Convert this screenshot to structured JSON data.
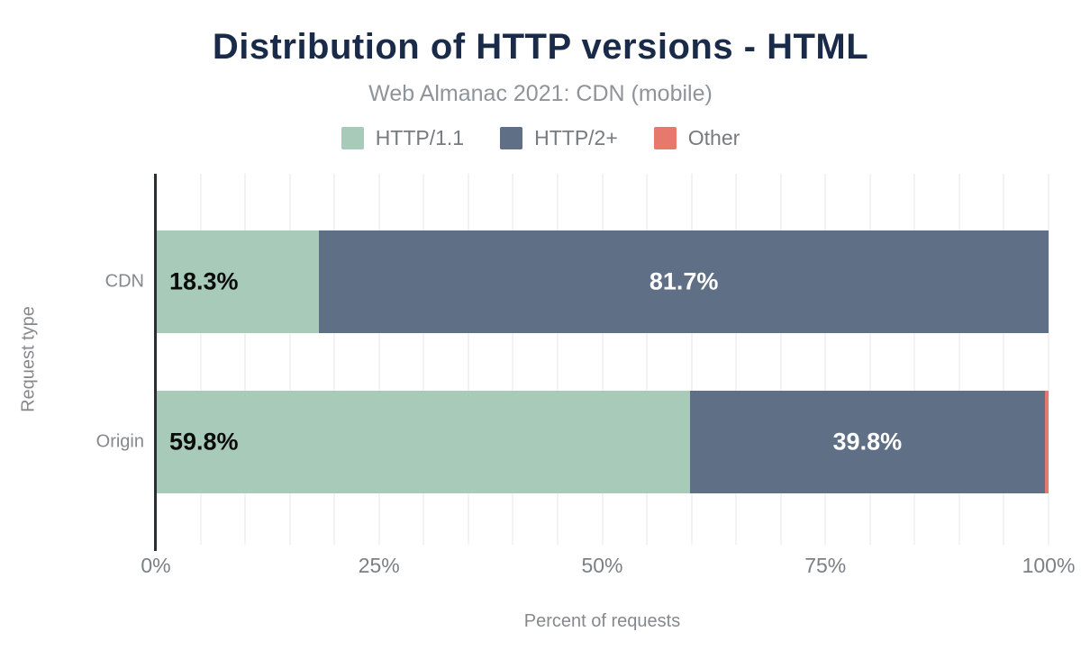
{
  "header": {
    "title": "Distribution of HTTP versions - HTML",
    "subtitle": "Web Almanac 2021: CDN (mobile)"
  },
  "legend": {
    "items": [
      {
        "label": "HTTP/1.1",
        "color": "#A7CBB8"
      },
      {
        "label": "HTTP/2+",
        "color": "#5F7086"
      },
      {
        "label": "Other",
        "color": "#E7796C"
      }
    ]
  },
  "chart_data": {
    "type": "bar",
    "orientation": "horizontal",
    "stacked": true,
    "title": "Distribution of HTTP versions - HTML",
    "subtitle": "Web Almanac 2021: CDN (mobile)",
    "categories": [
      "CDN",
      "Origin"
    ],
    "series": [
      {
        "name": "HTTP/1.1",
        "color": "#A7CBB8",
        "values": [
          18.3,
          59.8
        ],
        "labels": [
          "18.3%",
          "59.8%"
        ],
        "label_align": "start",
        "label_color": "#0B0B0B"
      },
      {
        "name": "HTTP/2+",
        "color": "#5F7086",
        "values": [
          81.7,
          39.8
        ],
        "labels": [
          "81.7%",
          "39.8%"
        ],
        "label_align": "center",
        "label_color": "#FFFFFF"
      },
      {
        "name": "Other",
        "color": "#E7796C",
        "values": [
          0.0,
          0.4
        ],
        "labels": [
          "",
          ""
        ],
        "label_align": "center",
        "label_color": "#FFFFFF"
      }
    ],
    "xlabel": "Percent of requests",
    "ylabel": "Request type",
    "x_ticks": [
      "0%",
      "25%",
      "50%",
      "75%",
      "100%"
    ],
    "x_tick_values": [
      0,
      25,
      50,
      75,
      100
    ],
    "xlim": [
      0,
      100
    ],
    "grid": "vertical gridlines every 5%",
    "legend_position": "top"
  },
  "colors": {
    "title": "#1A2B49",
    "subtitle": "#8F9499",
    "axis_text": "#7A8086",
    "axis_line": "#2A2E33",
    "gridline": "#F3F3F3",
    "background": "#FFFFFF"
  }
}
